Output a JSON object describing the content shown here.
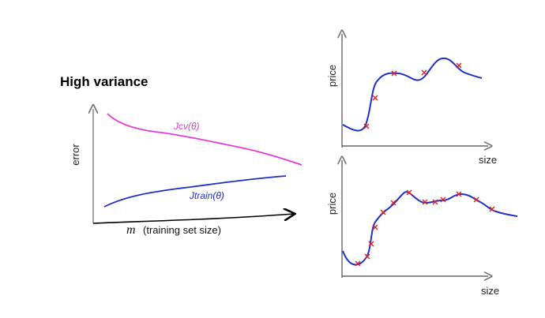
{
  "learning_curve": {
    "title": "High variance",
    "y_axis_label": "error",
    "x_axis_symbol": "m",
    "x_axis_label": "(training set size)",
    "cv_curve_label": "Jcv(θ)",
    "train_curve_label": "Jtrain(θ)",
    "cv_color": "#e23bd8",
    "train_color": "#1f2fc9"
  },
  "plot_top": {
    "y_axis_label": "price",
    "x_axis_label": "size",
    "points": 5
  },
  "plot_bottom": {
    "y_axis_label": "price",
    "x_axis_label": "size",
    "points": 13
  },
  "colors": {
    "fit_curve": "#1f2fc9",
    "data_point": "#e02020",
    "axis": "#333333"
  }
}
